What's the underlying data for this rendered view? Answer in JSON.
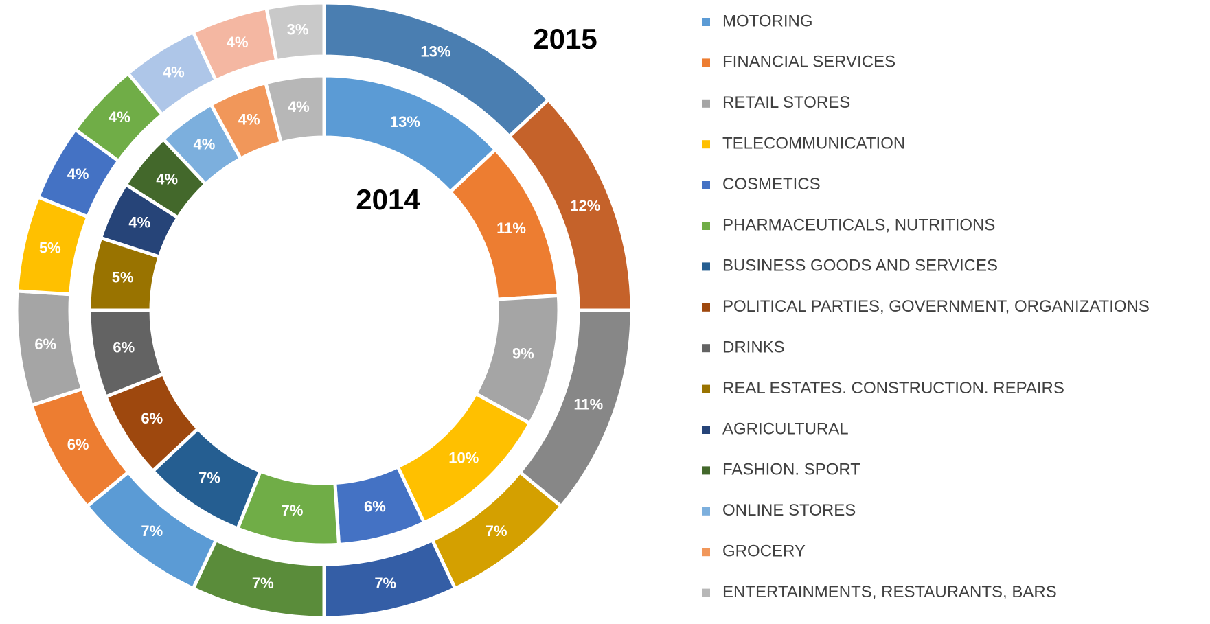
{
  "chart_data": {
    "type": "doughnut",
    "categories": [
      "MOTORING",
      "FINANCIAL SERVICES",
      "RETAIL STORES",
      "TELECOMMUNICATION",
      "COSMETICS",
      "PHARMACEUTICALS, NUTRITIONS",
      "BUSINESS GOODS AND SERVICES",
      "POLITICAL PARTIES, GOVERNMENT, ORGANIZATIONS",
      "DRINKS",
      "REAL ESTATES. CONSTRUCTION. REPAIRS",
      "AGRICULTURAL",
      "FASHION. SPORT",
      "ONLINE STORES",
      "GROCERY",
      "ENTERTAINMENTS, RESTAURANTS, BARS"
    ],
    "series": [
      {
        "name": "2015",
        "ring": "outer",
        "values": [
          13,
          12,
          11,
          7,
          7,
          7,
          7,
          6,
          6,
          5,
          4,
          4,
          4,
          4,
          3
        ],
        "value_labels": [
          "13%",
          "12%",
          "11%",
          "7%",
          "7%",
          "7%",
          "7%",
          "6%",
          "6%",
          "5%",
          "4%",
          "4%",
          "4%",
          "4%",
          "3%"
        ],
        "colors": [
          "#4a7eb1",
          "#c5622a",
          "#878787",
          "#d4a000",
          "#345ea6",
          "#5a8c3a",
          "#5b9bd5",
          "#ed7d31",
          "#a5a5a5",
          "#ffc000",
          "#4472c4",
          "#70ad47",
          "#aec6e8",
          "#f4b7a2",
          "#c9c9c9"
        ]
      },
      {
        "name": "2014",
        "ring": "inner",
        "values": [
          13,
          11,
          9,
          10,
          6,
          7,
          7,
          6,
          6,
          5,
          4,
          4,
          4,
          4,
          4
        ],
        "value_labels": [
          "13%",
          "11%",
          "9%",
          "10%",
          "6%",
          "7%",
          "7%",
          "6%",
          "6%",
          "5%",
          "4%",
          "4%",
          "4%",
          "4%",
          "4%"
        ],
        "colors": [
          "#5b9bd5",
          "#ed7d31",
          "#a5a5a5",
          "#ffc000",
          "#4472c4",
          "#70ad47",
          "#255e91",
          "#9e480e",
          "#636363",
          "#997300",
          "#264478",
          "#43682b",
          "#7cafdd",
          "#f1975a",
          "#b7b7b7"
        ]
      }
    ]
  }
}
